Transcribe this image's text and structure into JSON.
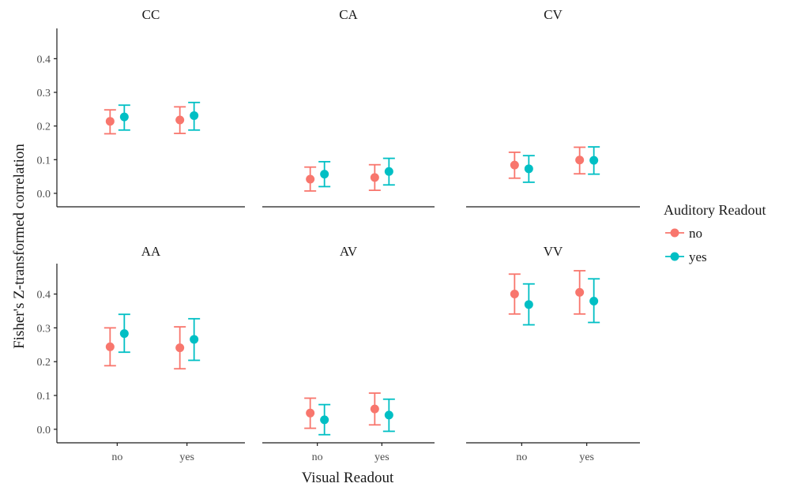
{
  "chart_data": {
    "type": "scatter",
    "subtype": "point-with-errorbars",
    "xlabel": "Visual Readout",
    "ylabel": "Fisher's Z-transformed correlation",
    "categories": [
      "no",
      "yes"
    ],
    "yticks": [
      0.0,
      0.1,
      0.2,
      0.3,
      0.4
    ],
    "ytick_labels": [
      "0.0",
      "0.1",
      "0.2",
      "0.3",
      "0.4"
    ],
    "grid": false,
    "legend": {
      "title": "Auditory Readout",
      "placement": "right",
      "entries": [
        {
          "name": "no",
          "color": "#F8766D"
        },
        {
          "name": "yes",
          "color": "#00BFC4"
        }
      ]
    },
    "facets": [
      {
        "title": "CC",
        "row": 0,
        "col": 0,
        "ylim": [
          -0.04,
          0.49
        ],
        "series": [
          {
            "name": "no",
            "color": "#F8766D",
            "points": [
              {
                "x": "no",
                "y": 0.214,
                "lo": 0.177,
                "hi": 0.248
              },
              {
                "x": "yes",
                "y": 0.218,
                "lo": 0.178,
                "hi": 0.257
              }
            ]
          },
          {
            "name": "yes",
            "color": "#00BFC4",
            "points": [
              {
                "x": "no",
                "y": 0.227,
                "lo": 0.188,
                "hi": 0.262
              },
              {
                "x": "yes",
                "y": 0.231,
                "lo": 0.188,
                "hi": 0.27
              }
            ]
          }
        ]
      },
      {
        "title": "CA",
        "row": 0,
        "col": 1,
        "ylim": [
          -0.04,
          0.49
        ],
        "series": [
          {
            "name": "no",
            "color": "#F8766D",
            "points": [
              {
                "x": "no",
                "y": 0.042,
                "lo": 0.007,
                "hi": 0.078
              },
              {
                "x": "yes",
                "y": 0.047,
                "lo": 0.009,
                "hi": 0.085
              }
            ]
          },
          {
            "name": "yes",
            "color": "#00BFC4",
            "points": [
              {
                "x": "no",
                "y": 0.057,
                "lo": 0.02,
                "hi": 0.094
              },
              {
                "x": "yes",
                "y": 0.065,
                "lo": 0.025,
                "hi": 0.104
              }
            ]
          }
        ]
      },
      {
        "title": "CV",
        "row": 0,
        "col": 2,
        "ylim": [
          -0.04,
          0.49
        ],
        "series": [
          {
            "name": "no",
            "color": "#F8766D",
            "points": [
              {
                "x": "no",
                "y": 0.084,
                "lo": 0.045,
                "hi": 0.122
              },
              {
                "x": "yes",
                "y": 0.099,
                "lo": 0.058,
                "hi": 0.137
              }
            ]
          },
          {
            "name": "yes",
            "color": "#00BFC4",
            "points": [
              {
                "x": "no",
                "y": 0.073,
                "lo": 0.033,
                "hi": 0.112
              },
              {
                "x": "yes",
                "y": 0.098,
                "lo": 0.057,
                "hi": 0.138
              }
            ]
          }
        ]
      },
      {
        "title": "AA",
        "row": 1,
        "col": 0,
        "ylim": [
          -0.04,
          0.49
        ],
        "series": [
          {
            "name": "no",
            "color": "#F8766D",
            "points": [
              {
                "x": "no",
                "y": 0.244,
                "lo": 0.188,
                "hi": 0.3
              },
              {
                "x": "yes",
                "y": 0.241,
                "lo": 0.179,
                "hi": 0.303
              }
            ]
          },
          {
            "name": "yes",
            "color": "#00BFC4",
            "points": [
              {
                "x": "no",
                "y": 0.283,
                "lo": 0.228,
                "hi": 0.34
              },
              {
                "x": "yes",
                "y": 0.266,
                "lo": 0.204,
                "hi": 0.327
              }
            ]
          }
        ]
      },
      {
        "title": "AV",
        "row": 1,
        "col": 1,
        "ylim": [
          -0.04,
          0.49
        ],
        "series": [
          {
            "name": "no",
            "color": "#F8766D",
            "points": [
              {
                "x": "no",
                "y": 0.048,
                "lo": 0.003,
                "hi": 0.092
              },
              {
                "x": "yes",
                "y": 0.06,
                "lo": 0.013,
                "hi": 0.107
              }
            ]
          },
          {
            "name": "yes",
            "color": "#00BFC4",
            "points": [
              {
                "x": "no",
                "y": 0.028,
                "lo": -0.016,
                "hi": 0.073
              },
              {
                "x": "yes",
                "y": 0.042,
                "lo": -0.006,
                "hi": 0.089
              }
            ]
          }
        ]
      },
      {
        "title": "VV",
        "row": 1,
        "col": 2,
        "ylim": [
          -0.04,
          0.49
        ],
        "series": [
          {
            "name": "no",
            "color": "#F8766D",
            "points": [
              {
                "x": "no",
                "y": 0.4,
                "lo": 0.341,
                "hi": 0.459
              },
              {
                "x": "yes",
                "y": 0.405,
                "lo": 0.341,
                "hi": 0.469
              }
            ]
          },
          {
            "name": "yes",
            "color": "#00BFC4",
            "points": [
              {
                "x": "no",
                "y": 0.369,
                "lo": 0.309,
                "hi": 0.43
              },
              {
                "x": "yes",
                "y": 0.379,
                "lo": 0.316,
                "hi": 0.445
              }
            ]
          }
        ]
      }
    ]
  }
}
